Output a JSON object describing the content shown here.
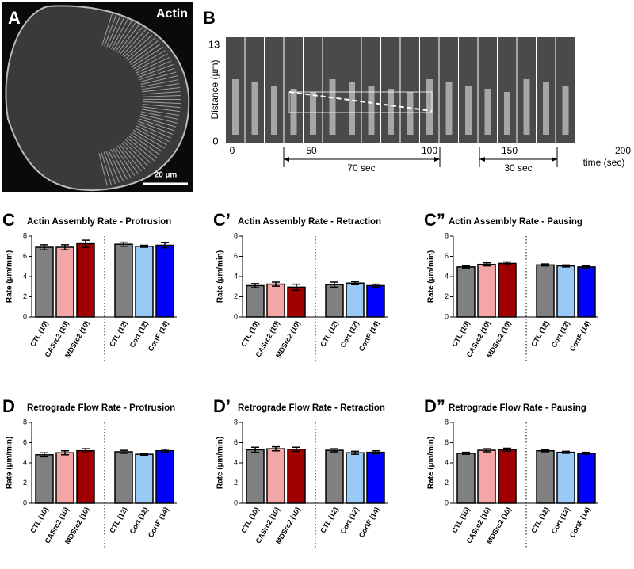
{
  "image_panels": {
    "a": {
      "label": "A",
      "stain": "Actin",
      "scale_bar": "20 µm"
    },
    "b": {
      "label": "B",
      "y_axis_label": "Distance (µm)",
      "y_top": "13",
      "y_bottom": "0",
      "x_ticks": [
        "0",
        "50",
        "100",
        "150",
        "200"
      ],
      "x_label": "time (sec)",
      "interval_1": "70 sec",
      "interval_2": "30 sec"
    }
  },
  "chart_data": [
    {
      "type": "bar",
      "panel": "C",
      "title": "Actin Assembly Rate - Protrusion",
      "ylabel": "Rate (µm/min)",
      "categories": [
        "CTL (10)",
        "CASrc2 (10)",
        "MDSrc2 (10)",
        "CTL (12)",
        "Cort (12)",
        "CortF (14)"
      ],
      "values": [
        6.9,
        6.9,
        7.25,
        7.2,
        7.0,
        7.1
      ],
      "errors": [
        0.25,
        0.25,
        0.35,
        0.2,
        0.1,
        0.25
      ],
      "colors": [
        "#808080",
        "#f4a6a6",
        "#a00000",
        "#808080",
        "#99c9f5",
        "#0000ff"
      ],
      "ylim": [
        0,
        8
      ],
      "yticks": [
        0,
        2,
        4,
        6,
        8
      ]
    },
    {
      "type": "bar",
      "panel": "C’",
      "title": "Actin Assembly Rate - Retraction",
      "ylabel": "Rate (µm/min)",
      "categories": [
        "CTL (10)",
        "CASrc2 (10)",
        "MDSrc2 (10)",
        "CTL (12)",
        "Cort (12)",
        "CortF (14)"
      ],
      "values": [
        3.1,
        3.25,
        2.95,
        3.2,
        3.35,
        3.1
      ],
      "errors": [
        0.2,
        0.2,
        0.3,
        0.25,
        0.15,
        0.15
      ],
      "colors": [
        "#808080",
        "#f4a6a6",
        "#a00000",
        "#808080",
        "#99c9f5",
        "#0000ff"
      ],
      "ylim": [
        0,
        8
      ],
      "yticks": [
        0,
        2,
        4,
        6,
        8
      ]
    },
    {
      "type": "bar",
      "panel": "C”",
      "title": "Actin Assembly Rate - Pausing",
      "ylabel": "Rate (µm/min)",
      "categories": [
        "CTL (10)",
        "CASrc2 (10)",
        "MDSrc2 (10)",
        "CTL (12)",
        "Cort (12)",
        "CortF (14)"
      ],
      "values": [
        4.95,
        5.2,
        5.3,
        5.15,
        5.05,
        4.95
      ],
      "errors": [
        0.1,
        0.15,
        0.15,
        0.1,
        0.1,
        0.1
      ],
      "colors": [
        "#808080",
        "#f4a6a6",
        "#a00000",
        "#808080",
        "#99c9f5",
        "#0000ff"
      ],
      "ylim": [
        0,
        8
      ],
      "yticks": [
        0,
        2,
        4,
        6,
        8
      ]
    },
    {
      "type": "bar",
      "panel": "D",
      "title": "Retrograde Flow Rate - Protrusion",
      "ylabel": "Rate (µm/min)",
      "categories": [
        "CTL (10)",
        "CASrc2 (10)",
        "MDSrc2 (10)",
        "CTL (12)",
        "Cort (12)",
        "CortF (14)"
      ],
      "values": [
        4.8,
        5.0,
        5.2,
        5.1,
        4.85,
        5.2
      ],
      "errors": [
        0.2,
        0.2,
        0.2,
        0.15,
        0.1,
        0.15
      ],
      "colors": [
        "#808080",
        "#f4a6a6",
        "#a00000",
        "#808080",
        "#99c9f5",
        "#0000ff"
      ],
      "ylim": [
        0,
        8
      ],
      "yticks": [
        0,
        2,
        4,
        6,
        8
      ]
    },
    {
      "type": "bar",
      "panel": "D’",
      "title": "Retrograde Flow Rate - Retraction",
      "ylabel": "Rate (µm/min)",
      "categories": [
        "CTL (10)",
        "CASrc2 (10)",
        "MDSrc2 (10)",
        "CTL (12)",
        "Cort (12)",
        "CortF (14)"
      ],
      "values": [
        5.3,
        5.4,
        5.35,
        5.25,
        5.0,
        5.05
      ],
      "errors": [
        0.25,
        0.2,
        0.2,
        0.15,
        0.15,
        0.15
      ],
      "colors": [
        "#808080",
        "#f4a6a6",
        "#a00000",
        "#808080",
        "#99c9f5",
        "#0000ff"
      ],
      "ylim": [
        0,
        8
      ],
      "yticks": [
        0,
        2,
        4,
        6,
        8
      ]
    },
    {
      "type": "bar",
      "panel": "D”",
      "title": "Retrograde Flow Rate - Pausing",
      "ylabel": "Rate (µm/min)",
      "categories": [
        "CTL (10)",
        "CASrc2 (10)",
        "MDSrc2 (10)",
        "CTL (12)",
        "Cort (12)",
        "CortF (14)"
      ],
      "values": [
        4.95,
        5.25,
        5.3,
        5.2,
        5.05,
        4.95
      ],
      "errors": [
        0.1,
        0.15,
        0.15,
        0.1,
        0.1,
        0.1
      ],
      "colors": [
        "#808080",
        "#f4a6a6",
        "#a00000",
        "#808080",
        "#99c9f5",
        "#0000ff"
      ],
      "ylim": [
        0,
        8
      ],
      "yticks": [
        0,
        2,
        4,
        6,
        8
      ]
    }
  ]
}
